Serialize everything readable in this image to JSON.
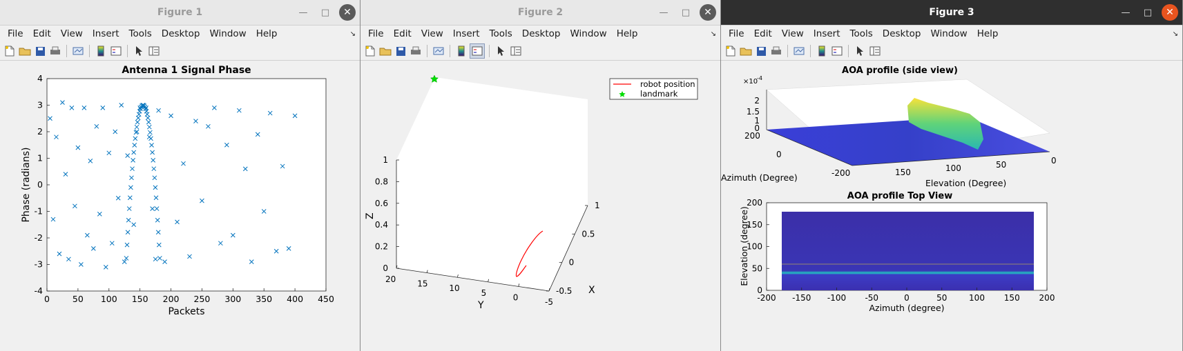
{
  "menu": [
    "File",
    "Edit",
    "View",
    "Insert",
    "Tools",
    "Desktop",
    "Window",
    "Help"
  ],
  "windows": [
    {
      "title": "Figure 1",
      "state": "inactive"
    },
    {
      "title": "Figure 2",
      "state": "inactive"
    },
    {
      "title": "Figure 3",
      "state": "active"
    }
  ],
  "fig1": {
    "title": "Antenna 1 Signal Phase",
    "xlabel": "Packets",
    "ylabel": "Phase (radians)",
    "xticks": [
      "0",
      "50",
      "100",
      "150",
      "200",
      "250",
      "300",
      "350",
      "400",
      "450"
    ],
    "yticks": [
      "-4",
      "-3",
      "-2",
      "-1",
      "0",
      "1",
      "2",
      "3",
      "4"
    ]
  },
  "fig2": {
    "legend": [
      "robot position",
      "landmark"
    ],
    "zlabel": "Z",
    "ylabel": "Y",
    "xlabel": "X",
    "zticks": [
      "0",
      "0.2",
      "0.4",
      "0.6",
      "0.8",
      "1"
    ],
    "yticks": [
      "20",
      "15",
      "10",
      "5",
      "0",
      "-5"
    ],
    "xticks": [
      "1",
      "0.5",
      "0",
      "-0.5"
    ]
  },
  "fig3": {
    "title1": "AOA profile (side view)",
    "exponent": "×10",
    "exponent_power": "-4",
    "zticks": [
      "2",
      "1.5",
      "1",
      "0"
    ],
    "az_label": "Azimuth (Degree)",
    "el_label": "Elevation (Degree)",
    "az_ticks": [
      "200",
      "0",
      "-200"
    ],
    "el_ticks": [
      "150",
      "100",
      "50",
      "0"
    ],
    "title2": "AOA profile Top View",
    "y2label": "Elevation (degree)",
    "x2label": "Azimuth (degree)",
    "y2ticks": [
      "200",
      "150",
      "100",
      "50",
      "0"
    ],
    "x2ticks": [
      "-200",
      "-150",
      "-100",
      "-50",
      "0",
      "50",
      "100",
      "150",
      "200"
    ]
  },
  "chart_data": [
    {
      "type": "scatter",
      "title": "Antenna 1 Signal Phase",
      "xlabel": "Packets",
      "ylabel": "Phase (radians)",
      "xlim": [
        0,
        450
      ],
      "ylim": [
        -4,
        4
      ],
      "series": [
        {
          "marker": "x",
          "color": "#0072BD",
          "description_points": [
            [
              5,
              2.5
            ],
            [
              10,
              -1.3
            ],
            [
              15,
              1.8
            ],
            [
              20,
              -2.6
            ],
            [
              25,
              3.1
            ],
            [
              30,
              0.4
            ],
            [
              35,
              -2.8
            ],
            [
              40,
              2.9
            ],
            [
              45,
              -0.8
            ],
            [
              50,
              1.4
            ],
            [
              55,
              -3.0
            ],
            [
              60,
              2.9
            ],
            [
              65,
              -1.9
            ],
            [
              70,
              0.9
            ],
            [
              75,
              -2.4
            ],
            [
              80,
              2.2
            ],
            [
              85,
              -1.1
            ],
            [
              90,
              2.9
            ],
            [
              95,
              -3.1
            ],
            [
              100,
              1.2
            ],
            [
              105,
              -2.2
            ],
            [
              110,
              2.0
            ],
            [
              115,
              -0.5
            ],
            [
              120,
              3.0
            ],
            [
              125,
              -2.9
            ],
            [
              130,
              1.1
            ],
            [
              140,
              -1.5
            ],
            [
              145,
              2.0
            ],
            [
              150,
              2.9
            ],
            [
              155,
              3.0
            ],
            [
              160,
              2.9
            ],
            [
              165,
              1.8
            ],
            [
              170,
              -0.9
            ],
            [
              175,
              -2.8
            ],
            [
              180,
              2.8
            ],
            [
              190,
              -2.9
            ],
            [
              200,
              2.6
            ],
            [
              210,
              -1.4
            ],
            [
              220,
              0.8
            ],
            [
              230,
              -2.7
            ],
            [
              240,
              2.4
            ],
            [
              250,
              -0.6
            ],
            [
              260,
              2.2
            ],
            [
              270,
              2.9
            ],
            [
              280,
              -2.2
            ],
            [
              290,
              1.5
            ],
            [
              300,
              -1.9
            ],
            [
              310,
              2.8
            ],
            [
              320,
              0.6
            ],
            [
              330,
              -2.9
            ],
            [
              340,
              1.9
            ],
            [
              350,
              -1.0
            ],
            [
              360,
              2.7
            ],
            [
              370,
              -2.5
            ],
            [
              380,
              0.7
            ],
            [
              390,
              -2.4
            ],
            [
              400,
              2.6
            ]
          ]
        }
      ]
    },
    {
      "type": "line",
      "title": "",
      "zlabel": "Z",
      "ylabel": "Y",
      "xlabel": "X",
      "zlim": [
        0,
        1
      ],
      "ylim": [
        -5,
        20
      ],
      "xlim": [
        -0.5,
        1
      ],
      "series": [
        {
          "name": "robot position",
          "color": "#ff0000"
        },
        {
          "name": "landmark",
          "color": "#00cc00",
          "marker": "star"
        }
      ]
    },
    {
      "type": "heatmap",
      "title": "AOA profile Top View",
      "xlabel": "Azimuth (degree)",
      "ylabel": "Elevation (degree)",
      "xlim": [
        -200,
        200
      ],
      "ylim": [
        0,
        200
      ],
      "peak_elevation": 60
    }
  ]
}
